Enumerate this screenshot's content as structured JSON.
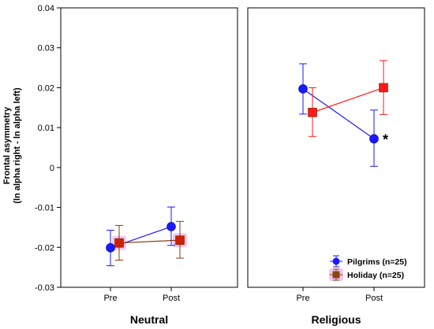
{
  "chart_data": {
    "type": "line",
    "ylabel_line1": "Frontal asymmetry",
    "ylabel_line2": "(ln alpha right - ln alpha left)",
    "ylim": [
      -0.03,
      0.04
    ],
    "yticks": [
      -0.03,
      -0.02,
      -0.01,
      0,
      0.01,
      0.02,
      0.03,
      0.04
    ],
    "ytick_labels": [
      "-0.03",
      "-0.02",
      "-0.01",
      "0",
      "0.01",
      "0.02",
      "0.03",
      "0.04"
    ],
    "categories": [
      "Pre",
      "Post"
    ],
    "grid": false,
    "legend_position": "bottom-right of right panel",
    "panels": [
      {
        "title": "Neutral",
        "series": [
          {
            "name": "Pilgrims (n=25)",
            "values": [
              -0.0201,
              -0.0148
            ],
            "err_low": [
              -0.0246,
              -0.0195
            ],
            "err_high": [
              -0.0157,
              -0.0099
            ]
          },
          {
            "name": "Holiday (n=25)",
            "values": [
              -0.0189,
              -0.0182
            ],
            "err_low": [
              -0.0232,
              -0.0227
            ],
            "err_high": [
              -0.0145,
              -0.0135
            ]
          }
        ]
      },
      {
        "title": "Religious",
        "series": [
          {
            "name": "Pilgrims (n=25)",
            "values": [
              0.0197,
              0.0072
            ],
            "err_low": [
              0.0134,
              0.0003
            ],
            "err_high": [
              0.026,
              0.0144
            ]
          },
          {
            "name": "Holiday (n=25)",
            "values": [
              0.0138,
              0.02
            ],
            "err_low": [
              0.0078,
              0.0133
            ],
            "err_high": [
              0.02,
              0.0268
            ]
          }
        ],
        "annotation": "*"
      }
    ],
    "legend": [
      {
        "label": "Pilgrims (n=25)",
        "marker": "circle"
      },
      {
        "label": "Holiday (n=25)",
        "marker": "square"
      }
    ],
    "colors": {
      "pilgrims_marker": "#1a1aff",
      "pilgrims_line_neutral": "#1a1aff",
      "pilgrims_line_religious": "#1a1aff",
      "pilgrims_err": "#1a1aff",
      "holiday_marker_neutral": "#cc2200",
      "holiday_line_neutral": "#8b3a0a",
      "holiday_err_neutral": "#8b3a0a",
      "holiday_marker_religious": "#ff1a1a",
      "holiday_line_religious": "#ff1a1a",
      "holiday_err_religious": "#ff1a1a",
      "legend_holiday": "#8b4513",
      "halo": "#f2c8f2"
    }
  }
}
